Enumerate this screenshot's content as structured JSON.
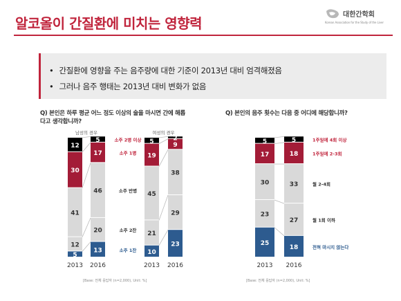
{
  "header": {
    "title": "알코올이 간질환에 미치는 영향력",
    "logo_name": "대한간학회",
    "logo_sub": "Korean Association for the Study of the Liver"
  },
  "summary": {
    "bullets": [
      "간질환에 영향을 주는 음주량에 대한 기준이 2013년 대비 엄격해졌음",
      "그러나 음주 행태는 2013년 대비 변화가 없음"
    ]
  },
  "colors": {
    "accent": "#c0243c",
    "dark_red": "#a31c37",
    "light_red": "#d8395b",
    "gray": "#d9d9d9",
    "blue": "#2d5b8f",
    "light_blue": "#3a6ea5"
  },
  "chart_data": [
    {
      "type": "bar",
      "stacked": true,
      "percent": true,
      "question": "Q) 본인은 하루 평균 어느 정도 이상의 술을 마시면 간에 해롭다고 생각합니까?",
      "groups": [
        "남성의 경우",
        "여성의 경우"
      ],
      "categories": [
        "2013",
        "2016",
        "2013",
        "2016"
      ],
      "series": [
        {
          "name": "소주 1잔",
          "values": [
            5,
            13,
            10,
            23
          ],
          "color": "#2d5b8f"
        },
        {
          "name": "소주 2잔",
          "values": [
            12,
            20,
            21,
            29
          ],
          "color": "#d9d9d9"
        },
        {
          "name": "소주 반병",
          "values": [
            41,
            46,
            45,
            38
          ],
          "color": "#d9d9d9"
        },
        {
          "name": "소주 1병",
          "values": [
            30,
            17,
            19,
            9
          ],
          "color": "#a31c37"
        },
        {
          "name": "소주 2병 이상",
          "values": [
            12,
            5,
            5,
            2
          ],
          "color": "#a31c37"
        }
      ],
      "base_note": "[Base: 전체 응답자 (n=2,000), Unit: %]"
    },
    {
      "type": "bar",
      "stacked": true,
      "percent": true,
      "question": "Q) 본인의 음주 횟수는 다음 중 어디에 해당합니까?",
      "categories": [
        "2013",
        "2016"
      ],
      "series": [
        {
          "name": "전혀 마시지 않는다",
          "values": [
            25,
            18
          ],
          "color": "#2d5b8f"
        },
        {
          "name": "월 1회 이하",
          "values": [
            23,
            27
          ],
          "color": "#d9d9d9"
        },
        {
          "name": "월 2-4회",
          "values": [
            30,
            33
          ],
          "color": "#d9d9d9"
        },
        {
          "name": "1주일에 2-3회",
          "values": [
            17,
            18
          ],
          "color": "#a31c37"
        },
        {
          "name": "1주일에 4회 이상",
          "values": [
            5,
            5
          ],
          "color": "#a31c37"
        }
      ],
      "base_note": "[Base: 전체 응답자 (n=2,000), Unit: %]"
    }
  ]
}
